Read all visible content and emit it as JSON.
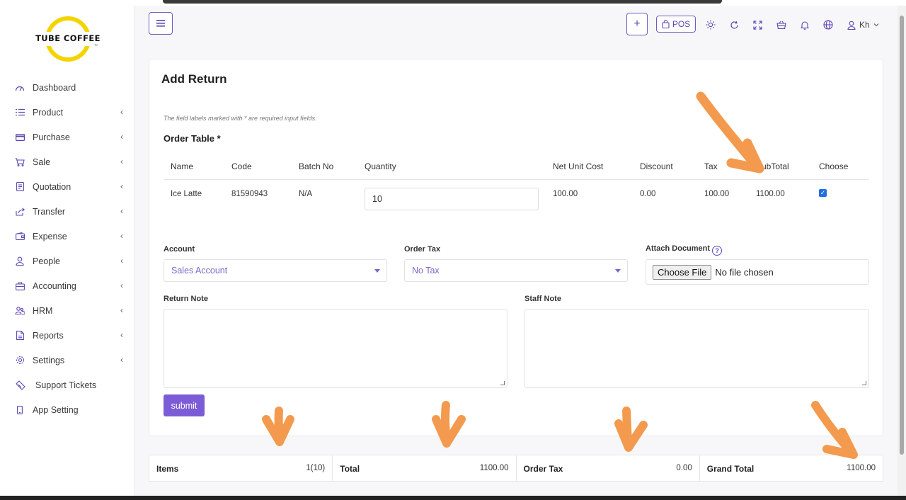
{
  "brand": {
    "name": "TUBE COFFEE",
    "tm": "™"
  },
  "nav": [
    {
      "label": "Dashboard",
      "icon": "gauge-icon",
      "chevron": false
    },
    {
      "label": "Product",
      "icon": "list-icon",
      "chevron": true
    },
    {
      "label": "Purchase",
      "icon": "card-icon",
      "chevron": true
    },
    {
      "label": "Sale",
      "icon": "cart-icon",
      "chevron": true
    },
    {
      "label": "Quotation",
      "icon": "document-icon",
      "chevron": true
    },
    {
      "label": "Transfer",
      "icon": "share-icon",
      "chevron": true
    },
    {
      "label": "Expense",
      "icon": "wallet-icon",
      "chevron": true
    },
    {
      "label": "People",
      "icon": "user-icon",
      "chevron": true
    },
    {
      "label": "Accounting",
      "icon": "briefcase-icon",
      "chevron": true
    },
    {
      "label": "HRM",
      "icon": "users-icon",
      "chevron": true
    },
    {
      "label": "Reports",
      "icon": "file-icon",
      "chevron": true
    },
    {
      "label": "Settings",
      "icon": "gear-icon",
      "chevron": true
    },
    {
      "label": "Support Tickets",
      "icon": "ticket-icon",
      "chevron": false
    },
    {
      "label": "App Setting",
      "icon": "phone-icon",
      "chevron": false
    }
  ],
  "header": {
    "pos_label": "POS",
    "user_label": "Kh"
  },
  "page": {
    "title": "Add Return",
    "hint": "The field labels marked with * are required input fields.",
    "order_table_label": "Order Table *"
  },
  "table": {
    "headers": [
      "Name",
      "Code",
      "Batch No",
      "Quantity",
      "Net Unit Cost",
      "Discount",
      "Tax",
      "SubTotal",
      "Choose"
    ],
    "rows": [
      {
        "name": "Ice Latte",
        "code": "81590943",
        "batch": "N/A",
        "quantity": "10",
        "net_unit_cost": "100.00",
        "discount": "0.00",
        "tax": "100.00",
        "subtotal": "1100.00",
        "chosen": true
      }
    ]
  },
  "form": {
    "account_label": "Account",
    "account_value": "Sales Account",
    "order_tax_label": "Order Tax",
    "order_tax_value": "No Tax",
    "attach_label": "Attach Document",
    "choose_file": "Choose File",
    "no_file": "No file chosen",
    "return_note_label": "Return Note",
    "staff_note_label": "Staff Note",
    "submit_label": "submit"
  },
  "totals": {
    "items_label": "Items",
    "items_value": "1(10)",
    "total_label": "Total",
    "total_value": "1100.00",
    "order_tax_label": "Order Tax",
    "order_tax_value": "0.00",
    "grand_total_label": "Grand Total",
    "grand_total_value": "1100.00"
  },
  "colors": {
    "accent": "#6f5bc4",
    "annotation": "#f39a4e",
    "logo_ring": "#f3d400"
  }
}
